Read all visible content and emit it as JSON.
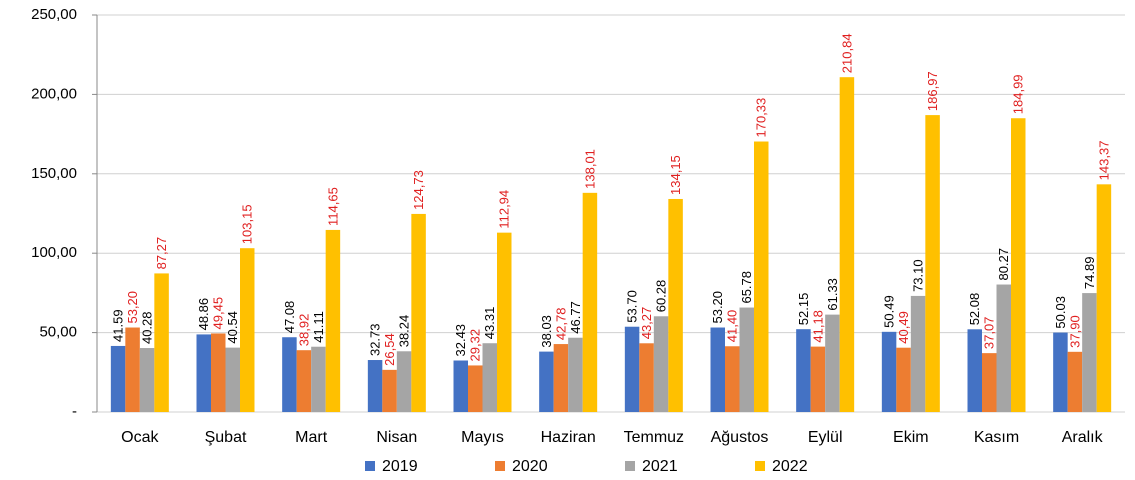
{
  "chart_data": {
    "type": "bar",
    "categories": [
      "Ocak",
      "Şubat",
      "Mart",
      "Nisan",
      "Mayıs",
      "Haziran",
      "Temmuz",
      "Ağustos",
      "Eylül",
      "Ekim",
      "Kasım",
      "Aralık"
    ],
    "series": [
      {
        "name": "2019",
        "color": "#4472c4",
        "label_color": "#000000",
        "values": [
          41.59,
          48.86,
          47.08,
          32.73,
          32.43,
          38.03,
          53.7,
          53.2,
          52.15,
          50.49,
          52.08,
          50.03
        ],
        "value_labels": [
          "41.59",
          "48.86",
          "47.08",
          "32.73",
          "32.43",
          "38.03",
          "53.70",
          "53.20",
          "52.15",
          "50.49",
          "52.08",
          "50.03"
        ]
      },
      {
        "name": "2020",
        "color": "#ed7d31",
        "label_color": "#e02020",
        "values": [
          53.2,
          49.45,
          38.92,
          26.54,
          29.32,
          42.78,
          43.27,
          41.4,
          41.18,
          40.49,
          37.07,
          37.9
        ],
        "value_labels": [
          "53,20",
          "49,45",
          "38,92",
          "26,54",
          "29,32",
          "42,78",
          "43,27",
          "41,40",
          "41,18",
          "40,49",
          "37,07",
          "37,90"
        ]
      },
      {
        "name": "2021",
        "color": "#a5a5a5",
        "label_color": "#000000",
        "values": [
          40.28,
          40.54,
          41.11,
          38.24,
          43.31,
          46.77,
          60.28,
          65.78,
          61.33,
          73.1,
          80.27,
          74.89
        ],
        "value_labels": [
          "40.28",
          "40.54",
          "41.11",
          "38.24",
          "43.31",
          "46.77",
          "60.28",
          "65.78",
          "61.33",
          "73.10",
          "80.27",
          "74.89"
        ]
      },
      {
        "name": "2022",
        "color": "#ffc000",
        "label_color": "#e02020",
        "values": [
          87.27,
          103.15,
          114.65,
          124.73,
          112.94,
          138.01,
          134.15,
          170.33,
          210.84,
          186.97,
          184.99,
          143.37
        ],
        "value_labels": [
          "87,27",
          "103,15",
          "114,65",
          "124,73",
          "112,94",
          "138,01",
          "134,15",
          "170,33",
          "210,84",
          "186,97",
          "184,99",
          "143,37"
        ]
      }
    ],
    "ylim": [
      0,
      250
    ],
    "yticks": [
      {
        "value": 0,
        "label": "-"
      },
      {
        "value": 50,
        "label": "50,00"
      },
      {
        "value": 100,
        "label": "100,00"
      },
      {
        "value": 150,
        "label": "150,00"
      },
      {
        "value": 200,
        "label": "200,00"
      },
      {
        "value": 250,
        "label": "250,00"
      }
    ],
    "grid": true,
    "legend": "bottom"
  }
}
